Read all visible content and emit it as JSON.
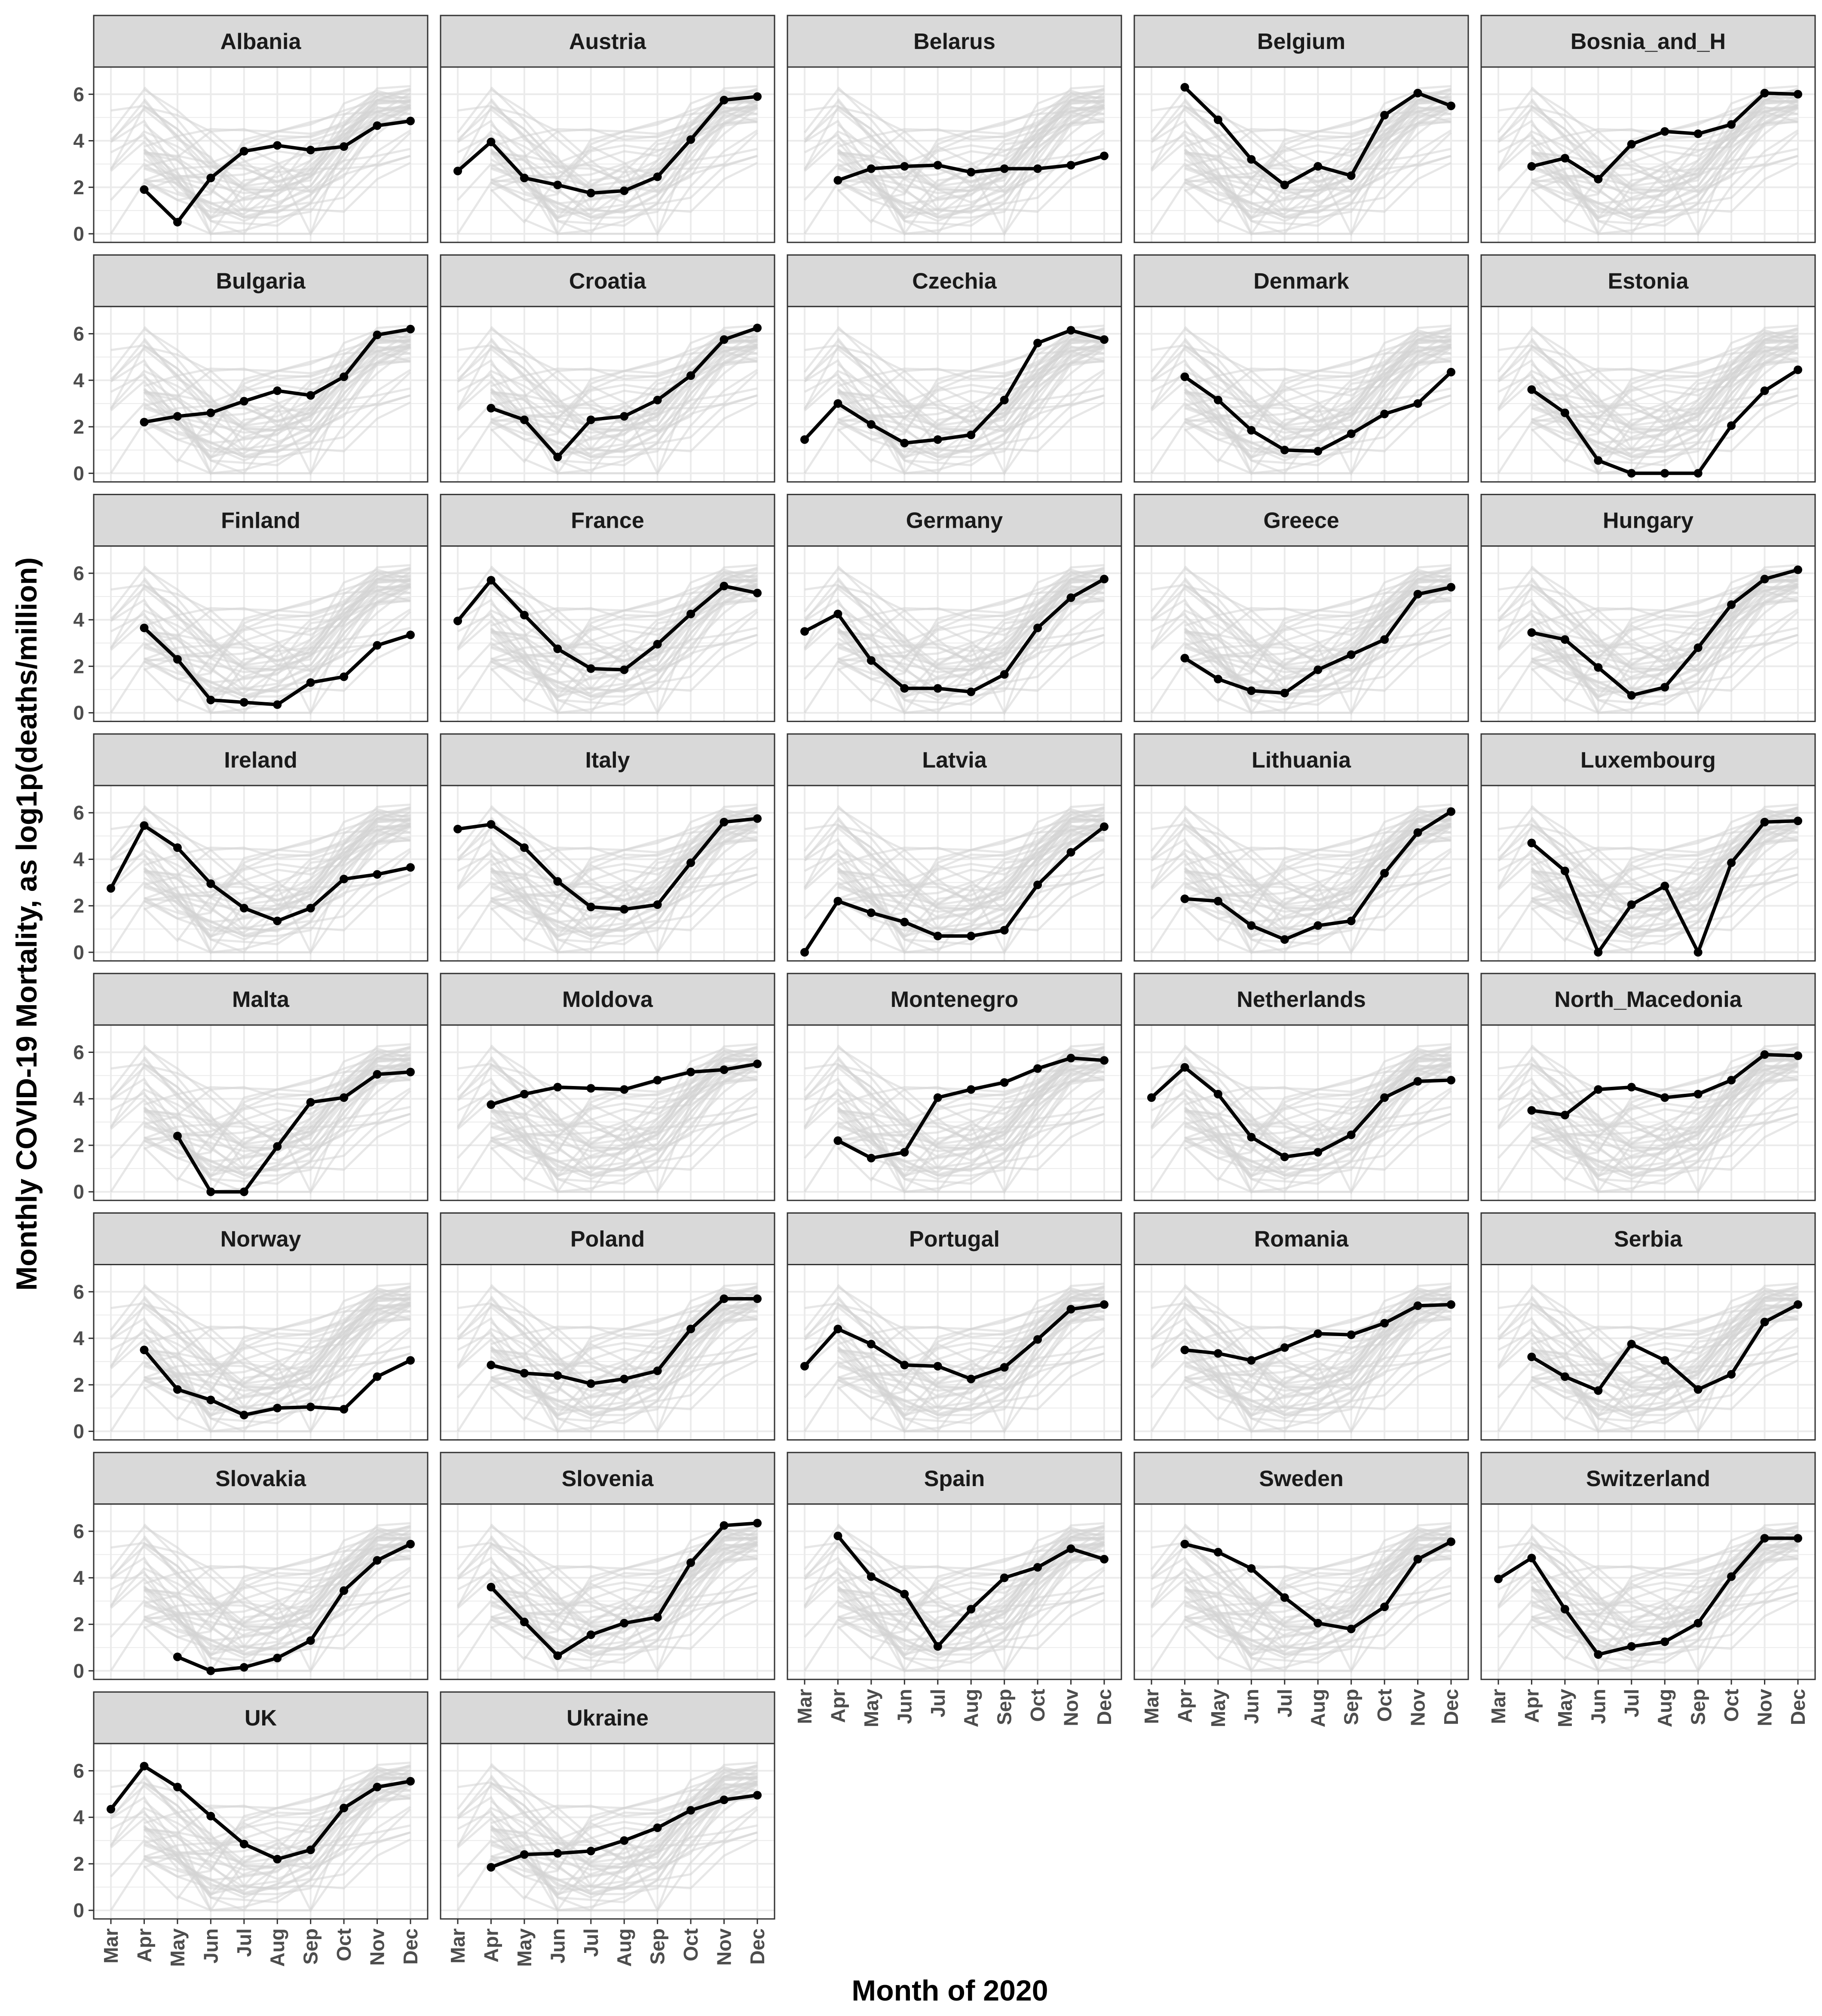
{
  "chart_data": {
    "type": "line",
    "xlabel": "Month of 2020",
    "ylabel": "Monthly COVID-19 Mortality, as  log1p(deaths/million)",
    "months": [
      "Mar",
      "Apr",
      "May",
      "Jun",
      "Jul",
      "Aug",
      "Sep",
      "Oct",
      "Nov",
      "Dec"
    ],
    "ylim": [
      0,
      6.8
    ],
    "yticks": [
      0,
      2,
      4,
      6
    ],
    "ytick_labels": [
      "0",
      "2",
      "4",
      "6"
    ],
    "grid": true,
    "colors": {
      "highlight": "#000000",
      "background_lines": "#d3d3d3",
      "strip_fill": "#d9d9d9",
      "panel_border": "#333333",
      "grid": "#ebebeb"
    },
    "series": [
      {
        "name": "Albania",
        "values": [
          null,
          1.9,
          0.5,
          2.4,
          3.55,
          3.8,
          3.6,
          3.75,
          4.65,
          4.85
        ]
      },
      {
        "name": "Austria",
        "values": [
          2.7,
          3.95,
          2.4,
          2.1,
          1.75,
          1.85,
          2.45,
          4.05,
          5.75,
          5.9
        ]
      },
      {
        "name": "Belarus",
        "values": [
          null,
          2.3,
          2.8,
          2.9,
          2.95,
          2.65,
          2.8,
          2.8,
          2.95,
          3.35
        ]
      },
      {
        "name": "Belgium",
        "values": [
          null,
          6.3,
          4.9,
          3.2,
          2.1,
          2.9,
          2.5,
          5.1,
          6.05,
          5.5
        ]
      },
      {
        "name": "Bosnia_and_H",
        "values": [
          null,
          2.9,
          3.25,
          2.35,
          3.85,
          4.4,
          4.3,
          4.7,
          6.05,
          6.0
        ]
      },
      {
        "name": "Bulgaria",
        "values": [
          null,
          2.2,
          2.45,
          2.6,
          3.1,
          3.55,
          3.35,
          4.15,
          5.95,
          6.2
        ]
      },
      {
        "name": "Croatia",
        "values": [
          null,
          2.8,
          2.3,
          0.7,
          2.3,
          2.45,
          3.15,
          4.2,
          5.75,
          6.25
        ]
      },
      {
        "name": "Czechia",
        "values": [
          1.45,
          3.0,
          2.1,
          1.3,
          1.45,
          1.65,
          3.15,
          5.6,
          6.15,
          5.75
        ]
      },
      {
        "name": "Denmark",
        "values": [
          null,
          4.15,
          3.15,
          1.85,
          1.0,
          0.95,
          1.7,
          2.55,
          3.0,
          4.35
        ]
      },
      {
        "name": "Estonia",
        "values": [
          null,
          3.6,
          2.6,
          0.55,
          0.0,
          0.0,
          0.0,
          2.05,
          3.55,
          4.45
        ]
      },
      {
        "name": "Finland",
        "values": [
          null,
          3.65,
          2.3,
          0.55,
          0.45,
          0.35,
          1.3,
          1.55,
          2.9,
          3.35
        ]
      },
      {
        "name": "France",
        "values": [
          3.95,
          5.7,
          4.2,
          2.75,
          1.9,
          1.85,
          2.95,
          4.25,
          5.45,
          5.15
        ]
      },
      {
        "name": "Germany",
        "values": [
          3.5,
          4.25,
          2.25,
          1.05,
          1.05,
          0.9,
          1.65,
          3.65,
          4.95,
          5.75
        ]
      },
      {
        "name": "Greece",
        "values": [
          null,
          2.35,
          1.45,
          0.95,
          0.85,
          1.85,
          2.5,
          3.15,
          5.1,
          5.4
        ]
      },
      {
        "name": "Hungary",
        "values": [
          null,
          3.45,
          3.15,
          1.95,
          0.75,
          1.1,
          2.8,
          4.65,
          5.75,
          6.15
        ]
      },
      {
        "name": "Ireland",
        "values": [
          2.75,
          5.45,
          4.5,
          2.95,
          1.9,
          1.35,
          1.9,
          3.15,
          3.35,
          3.65
        ]
      },
      {
        "name": "Italy",
        "values": [
          5.3,
          5.5,
          4.5,
          3.05,
          1.95,
          1.85,
          2.05,
          3.85,
          5.6,
          5.75
        ]
      },
      {
        "name": "Latvia",
        "values": [
          0.0,
          2.2,
          1.7,
          1.3,
          0.7,
          0.7,
          0.95,
          2.9,
          4.3,
          5.4
        ]
      },
      {
        "name": "Lithuania",
        "values": [
          null,
          2.3,
          2.2,
          1.15,
          0.55,
          1.15,
          1.35,
          3.4,
          5.15,
          6.05
        ]
      },
      {
        "name": "Luxembourg",
        "values": [
          null,
          4.7,
          3.5,
          0.0,
          2.05,
          2.85,
          0.0,
          3.85,
          5.6,
          5.65
        ]
      },
      {
        "name": "Malta",
        "values": [
          null,
          null,
          2.4,
          0.0,
          0.0,
          1.95,
          3.85,
          4.05,
          5.05,
          5.15
        ]
      },
      {
        "name": "Moldova",
        "values": [
          null,
          3.75,
          4.2,
          4.5,
          4.45,
          4.4,
          4.8,
          5.15,
          5.25,
          5.5
        ]
      },
      {
        "name": "Montenegro",
        "values": [
          null,
          2.2,
          1.45,
          1.7,
          4.05,
          4.4,
          4.7,
          5.3,
          5.75,
          5.65
        ]
      },
      {
        "name": "Netherlands",
        "values": [
          4.05,
          5.35,
          4.2,
          2.35,
          1.5,
          1.7,
          2.45,
          4.05,
          4.75,
          4.8
        ]
      },
      {
        "name": "North_Macedonia",
        "values": [
          null,
          3.5,
          3.3,
          4.4,
          4.5,
          4.05,
          4.2,
          4.8,
          5.9,
          5.85
        ]
      },
      {
        "name": "Norway",
        "values": [
          null,
          3.5,
          1.8,
          1.35,
          0.7,
          1.0,
          1.05,
          0.95,
          2.35,
          3.05
        ]
      },
      {
        "name": "Poland",
        "values": [
          null,
          2.85,
          2.5,
          2.4,
          2.05,
          2.25,
          2.6,
          4.4,
          5.7,
          5.7
        ]
      },
      {
        "name": "Portugal",
        "values": [
          2.8,
          4.4,
          3.75,
          2.85,
          2.8,
          2.25,
          2.75,
          3.95,
          5.25,
          5.45
        ]
      },
      {
        "name": "Romania",
        "values": [
          null,
          3.5,
          3.35,
          3.05,
          3.6,
          4.2,
          4.15,
          4.65,
          5.4,
          5.45
        ]
      },
      {
        "name": "Serbia",
        "values": [
          null,
          3.2,
          2.35,
          1.75,
          3.75,
          3.05,
          1.8,
          2.45,
          4.7,
          5.45
        ]
      },
      {
        "name": "Slovakia",
        "values": [
          null,
          null,
          0.6,
          0.0,
          0.15,
          0.55,
          1.3,
          3.45,
          4.75,
          5.45
        ]
      },
      {
        "name": "Slovenia",
        "values": [
          null,
          3.6,
          2.1,
          0.65,
          1.55,
          2.05,
          2.3,
          4.65,
          6.25,
          6.35
        ]
      },
      {
        "name": "Spain",
        "values": [
          null,
          5.8,
          4.05,
          3.3,
          1.05,
          2.65,
          4.0,
          4.45,
          5.25,
          4.8
        ]
      },
      {
        "name": "Sweden",
        "values": [
          null,
          5.45,
          5.1,
          4.4,
          3.15,
          2.05,
          1.8,
          2.75,
          4.8,
          5.55
        ]
      },
      {
        "name": "Switzerland",
        "values": [
          3.95,
          4.85,
          2.65,
          0.7,
          1.05,
          1.25,
          2.05,
          4.05,
          5.7,
          5.7
        ]
      },
      {
        "name": "UK",
        "values": [
          4.35,
          6.2,
          5.3,
          4.05,
          2.85,
          2.2,
          2.6,
          4.4,
          5.3,
          5.55
        ]
      },
      {
        "name": "Ukraine",
        "values": [
          null,
          1.85,
          2.4,
          2.45,
          2.55,
          3.0,
          3.55,
          4.3,
          4.75,
          4.95
        ]
      }
    ]
  }
}
